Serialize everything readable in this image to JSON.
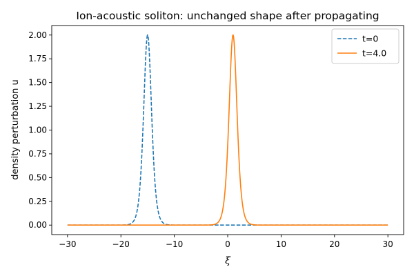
{
  "chart_data": {
    "type": "line",
    "title": "Ion-acoustic soliton: unchanged shape after propagating",
    "xlabel": "ξ",
    "ylabel": "density perturbation u",
    "xlim": [
      -32.95,
      32.95
    ],
    "ylim": [
      -0.1,
      2.1
    ],
    "xticks": [
      -30,
      -20,
      -10,
      0,
      10,
      20,
      30
    ],
    "yticks": [
      0.0,
      0.25,
      0.5,
      0.75,
      1.0,
      1.25,
      1.5,
      1.75,
      2.0
    ],
    "xtick_labels": [
      "−30",
      "−20",
      "−10",
      "0",
      "10",
      "20",
      "30"
    ],
    "ytick_labels": [
      "0.00",
      "0.25",
      "0.50",
      "0.75",
      "1.00",
      "1.25",
      "1.50",
      "1.75",
      "2.00"
    ],
    "grid": false,
    "legend_position": "top-right",
    "x_range": [
      -30,
      30
    ],
    "series": [
      {
        "name": "t=0",
        "style": "dashed",
        "color": "#1f77b4",
        "profile": "sech-squared",
        "amplitude": 2.0,
        "center": -15,
        "width": 1.0
      },
      {
        "name": "t=4.0",
        "style": "solid",
        "color": "#ff7f0e",
        "profile": "sech-squared",
        "amplitude": 2.0,
        "center": 1,
        "width": 1.0
      }
    ]
  }
}
